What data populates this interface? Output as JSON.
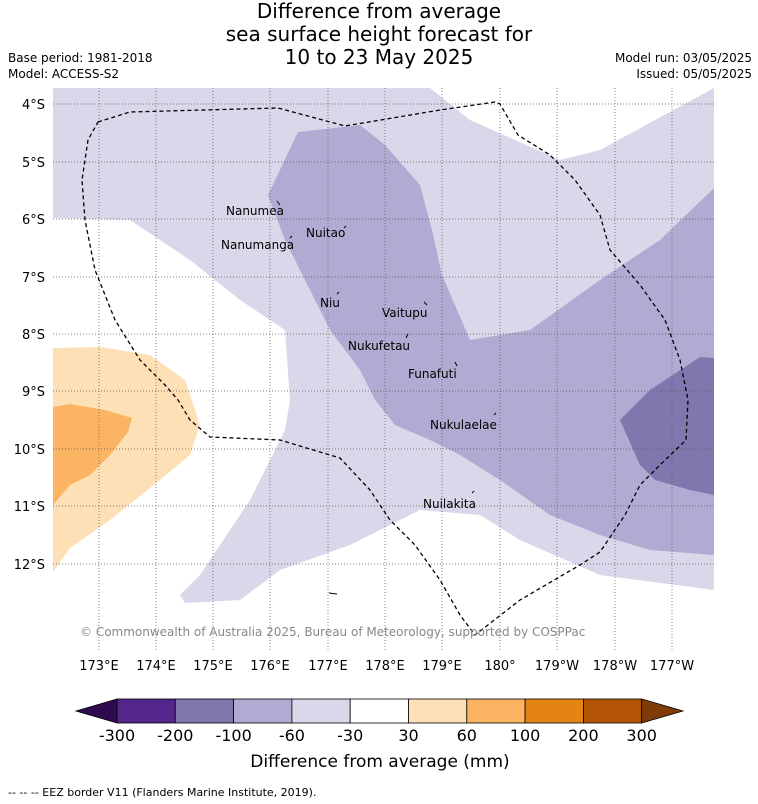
{
  "header": {
    "title_line1": "Difference from average",
    "title_line2": "sea surface height forecast for",
    "title_line3": "10 to 23 May 2025",
    "base_period": "Base period: 1981-2018",
    "model": "Model: ACCESS-S2",
    "model_run": "Model run: 03/05/2025",
    "issued": "Issued: 05/05/2025"
  },
  "map": {
    "copyright": "© Commonwealth of Australia 2025, Bureau of Meteorology, supported by COSPPac",
    "lat_labels": [
      "4°S",
      "5°S",
      "6°S",
      "7°S",
      "8°S",
      "9°S",
      "10°S",
      "11°S",
      "12°S"
    ],
    "lon_labels": [
      "173°E",
      "174°E",
      "175°E",
      "176°E",
      "177°E",
      "178°E",
      "179°E",
      "180°",
      "179°W",
      "178°W",
      "177°W"
    ],
    "islands": [
      {
        "name": "Nanumea"
      },
      {
        "name": "Nuitao"
      },
      {
        "name": "Nanumanga"
      },
      {
        "name": "Niu"
      },
      {
        "name": "Vaitupu"
      },
      {
        "name": "Nukufetau"
      },
      {
        "name": "Funafuti"
      },
      {
        "name": "Nukulaelae"
      },
      {
        "name": "Nuilakita"
      }
    ],
    "colors": {
      "-60_-30": "#d8d8ea",
      "-100_-60": "#b0abd2",
      "-200_-100": "#8276ae",
      "30_60": "#fde0b6",
      "60_100": "#fbb462"
    }
  },
  "legend": {
    "title": "Difference from average (mm)",
    "ticks": [
      "-300",
      "-200",
      "-100",
      "-60",
      "-30",
      "30",
      "60",
      "100",
      "200",
      "300"
    ],
    "colors": [
      "#2e0b50",
      "#54258a",
      "#8276ae",
      "#b0abd2",
      "#d8d8ea",
      "#ffffff",
      "#fde0b6",
      "#fbb462",
      "#e38415",
      "#b45505",
      "#7f3b08"
    ]
  },
  "footer": {
    "eez_note": "--  --  -- EEZ border V11 (Flanders Marine Institute, 2019)."
  }
}
